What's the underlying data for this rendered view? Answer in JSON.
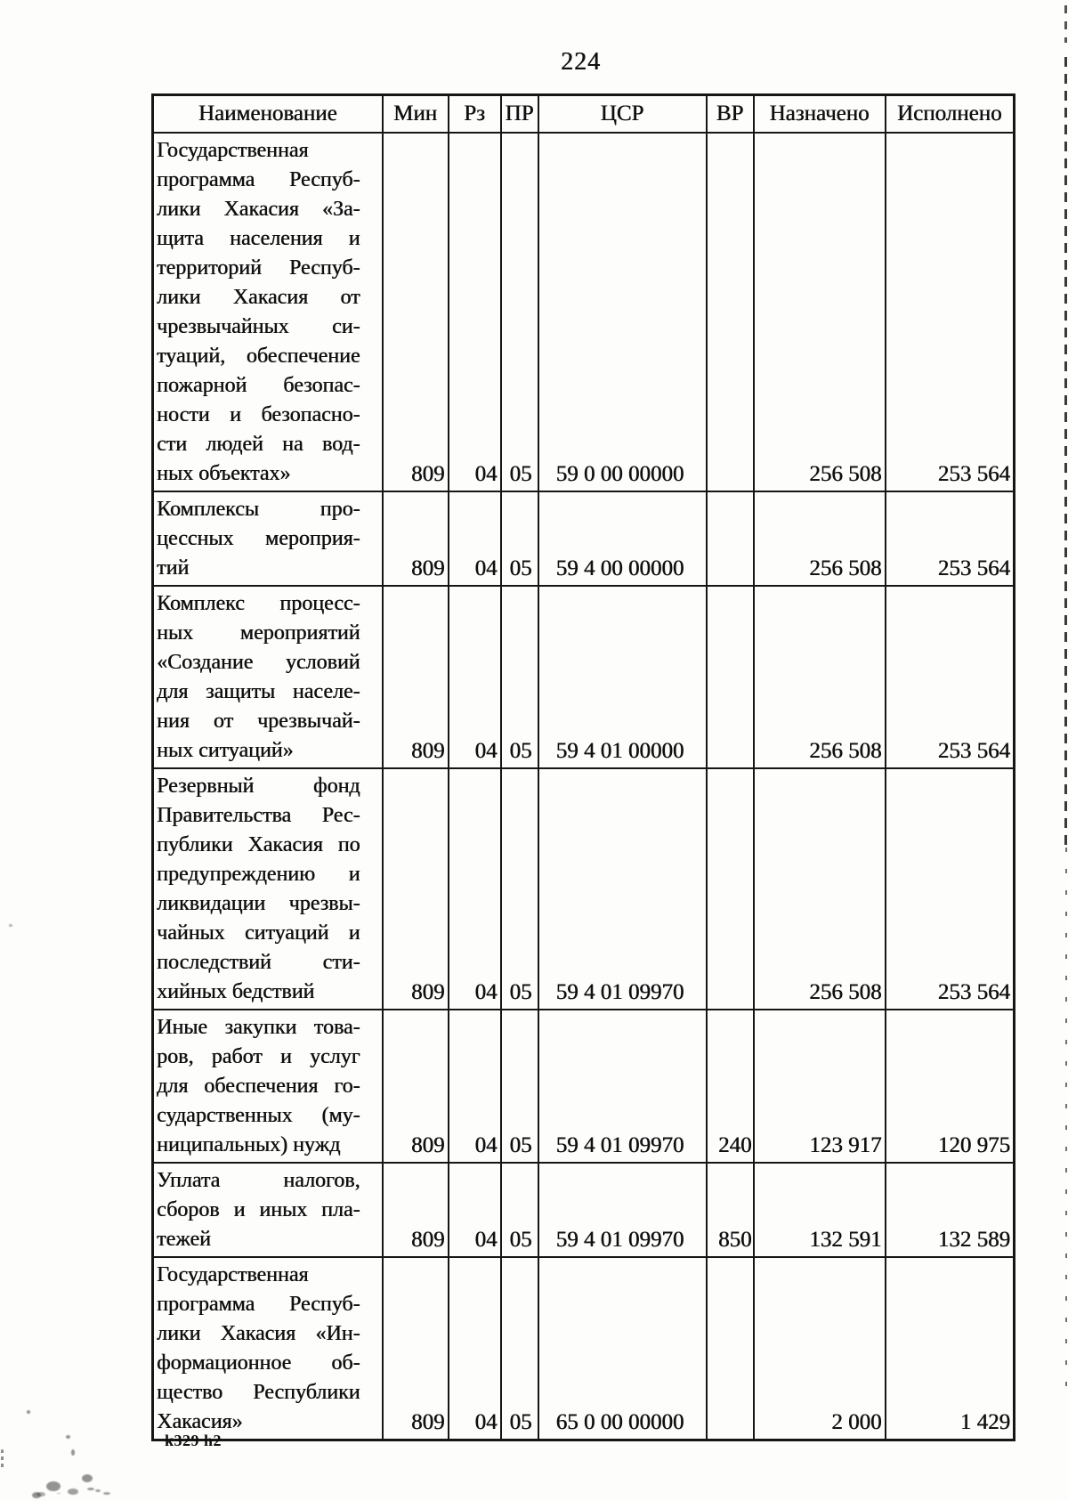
{
  "page": {
    "number": "224",
    "footer_code": "k329 h2"
  },
  "table": {
    "headers": [
      "Наименование",
      "Мин",
      "Рз",
      "ПР",
      "ЦСР",
      "ВР",
      "Назначено",
      "Исполнено"
    ],
    "rows": [
      {
        "name_lines": [
          "Государственная",
          "программа Респуб-",
          "лики Хакасия «За-",
          "щита населения и",
          "территорий Респуб-",
          "лики Хакасия от",
          "чрезвычайных си-",
          "туаций, обеспечение",
          "пожарной безопас-",
          "ности и безопасно-",
          "сти людей на вод-",
          "ных объектах»"
        ],
        "min": "809",
        "rz": "04",
        "pr": "05",
        "csr": "59 0 00 00000",
        "vr": "",
        "assigned": "256 508",
        "executed": "253 564"
      },
      {
        "name_lines": [
          "Комплексы про-",
          "цессных мероприя-",
          "тий"
        ],
        "min": "809",
        "rz": "04",
        "pr": "05",
        "csr": "59 4 00 00000",
        "vr": "",
        "assigned": "256 508",
        "executed": "253 564"
      },
      {
        "name_lines": [
          "Комплекс процесс-",
          "ных мероприятий",
          "«Создание условий",
          "для защиты населе-",
          "ния от чрезвычай-",
          "ных ситуаций»"
        ],
        "min": "809",
        "rz": "04",
        "pr": "05",
        "csr": "59 4 01 00000",
        "vr": "",
        "assigned": "256 508",
        "executed": "253 564"
      },
      {
        "name_lines": [
          "Резервный фонд",
          "Правительства Рес-",
          "публики Хакасия по",
          "предупреждению и",
          "ликвидации чрезвы-",
          "чайных ситуаций и",
          "последствий сти-",
          "хийных бедствий"
        ],
        "min": "809",
        "rz": "04",
        "pr": "05",
        "csr": "59 4 01 09970",
        "vr": "",
        "assigned": "256 508",
        "executed": "253 564"
      },
      {
        "name_lines": [
          "Иные закупки това-",
          "ров, работ и услуг",
          "для обеспечения го-",
          "сударственных (му-",
          "ниципальных) нужд"
        ],
        "min": "809",
        "rz": "04",
        "pr": "05",
        "csr": "59 4 01 09970",
        "vr": "240",
        "assigned": "123 917",
        "executed": "120 975"
      },
      {
        "name_lines": [
          "Уплата налогов,",
          "сборов и иных пла-",
          "тежей"
        ],
        "min": "809",
        "rz": "04",
        "pr": "05",
        "csr": "59 4 01 09970",
        "vr": "850",
        "assigned": "132 591",
        "executed": "132 589"
      },
      {
        "name_lines": [
          "Государственная",
          "программа Респуб-",
          "лики Хакасия «Ин-",
          "формационное об-",
          "щество Республики",
          "Хакасия»"
        ],
        "min": "809",
        "rz": "04",
        "pr": "05",
        "csr": "65 0 00 00000",
        "vr": "",
        "assigned": "2 000",
        "executed": "1 429"
      }
    ]
  }
}
